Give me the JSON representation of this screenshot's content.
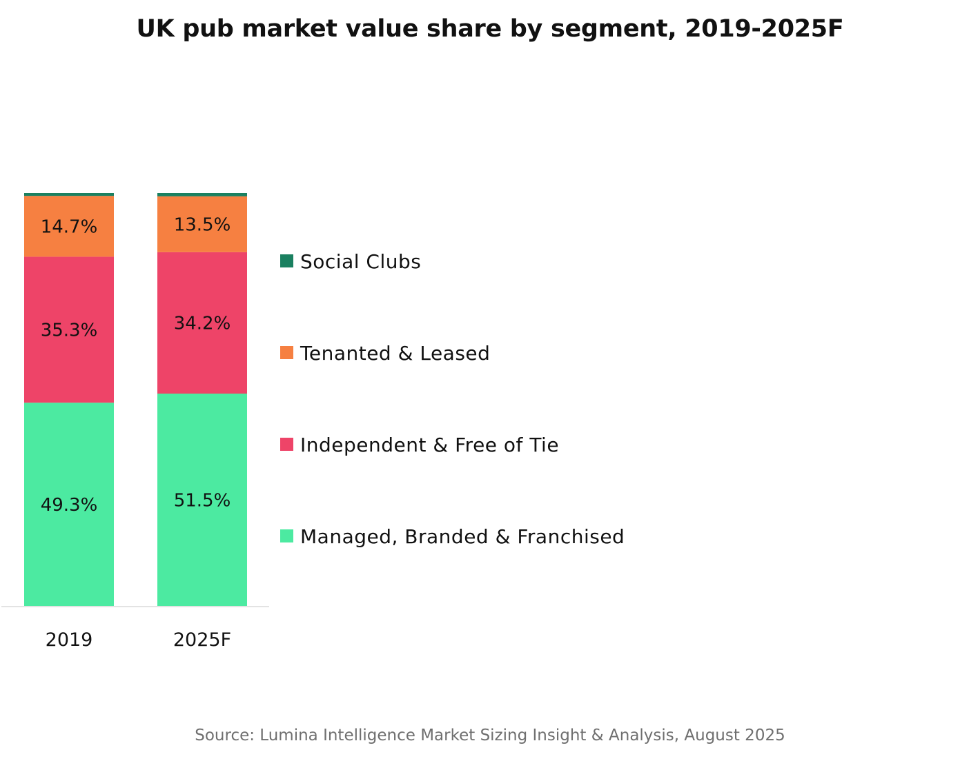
{
  "chart_data": {
    "type": "bar",
    "stacked": true,
    "title": "UK pub market value share by segment, 2019-2025F",
    "categories": [
      "2019",
      "2025F"
    ],
    "ylim": [
      0,
      100
    ],
    "grid": false,
    "legend_position": "right",
    "series": [
      {
        "name": "Managed, Branded & Franchised",
        "color": "#4ceaa1",
        "values": [
          49.3,
          51.5
        ],
        "labels": [
          "49.3%",
          "51.5%"
        ]
      },
      {
        "name": "Independent & Free of Tie",
        "color": "#ee4468",
        "values": [
          35.3,
          34.2
        ],
        "labels": [
          "35.3%",
          "34.2%"
        ]
      },
      {
        "name": "Tenanted & Leased",
        "color": "#f68041",
        "values": [
          14.7,
          13.5
        ],
        "labels": [
          "14.7%",
          "13.5%"
        ]
      },
      {
        "name": "Social Clubs",
        "color": "#1a8060",
        "values": [
          0.7,
          0.8
        ],
        "labels": [
          "",
          ""
        ]
      }
    ],
    "source": "Source: Lumina Intelligence Market Sizing Insight & Analysis,  August 2025"
  }
}
